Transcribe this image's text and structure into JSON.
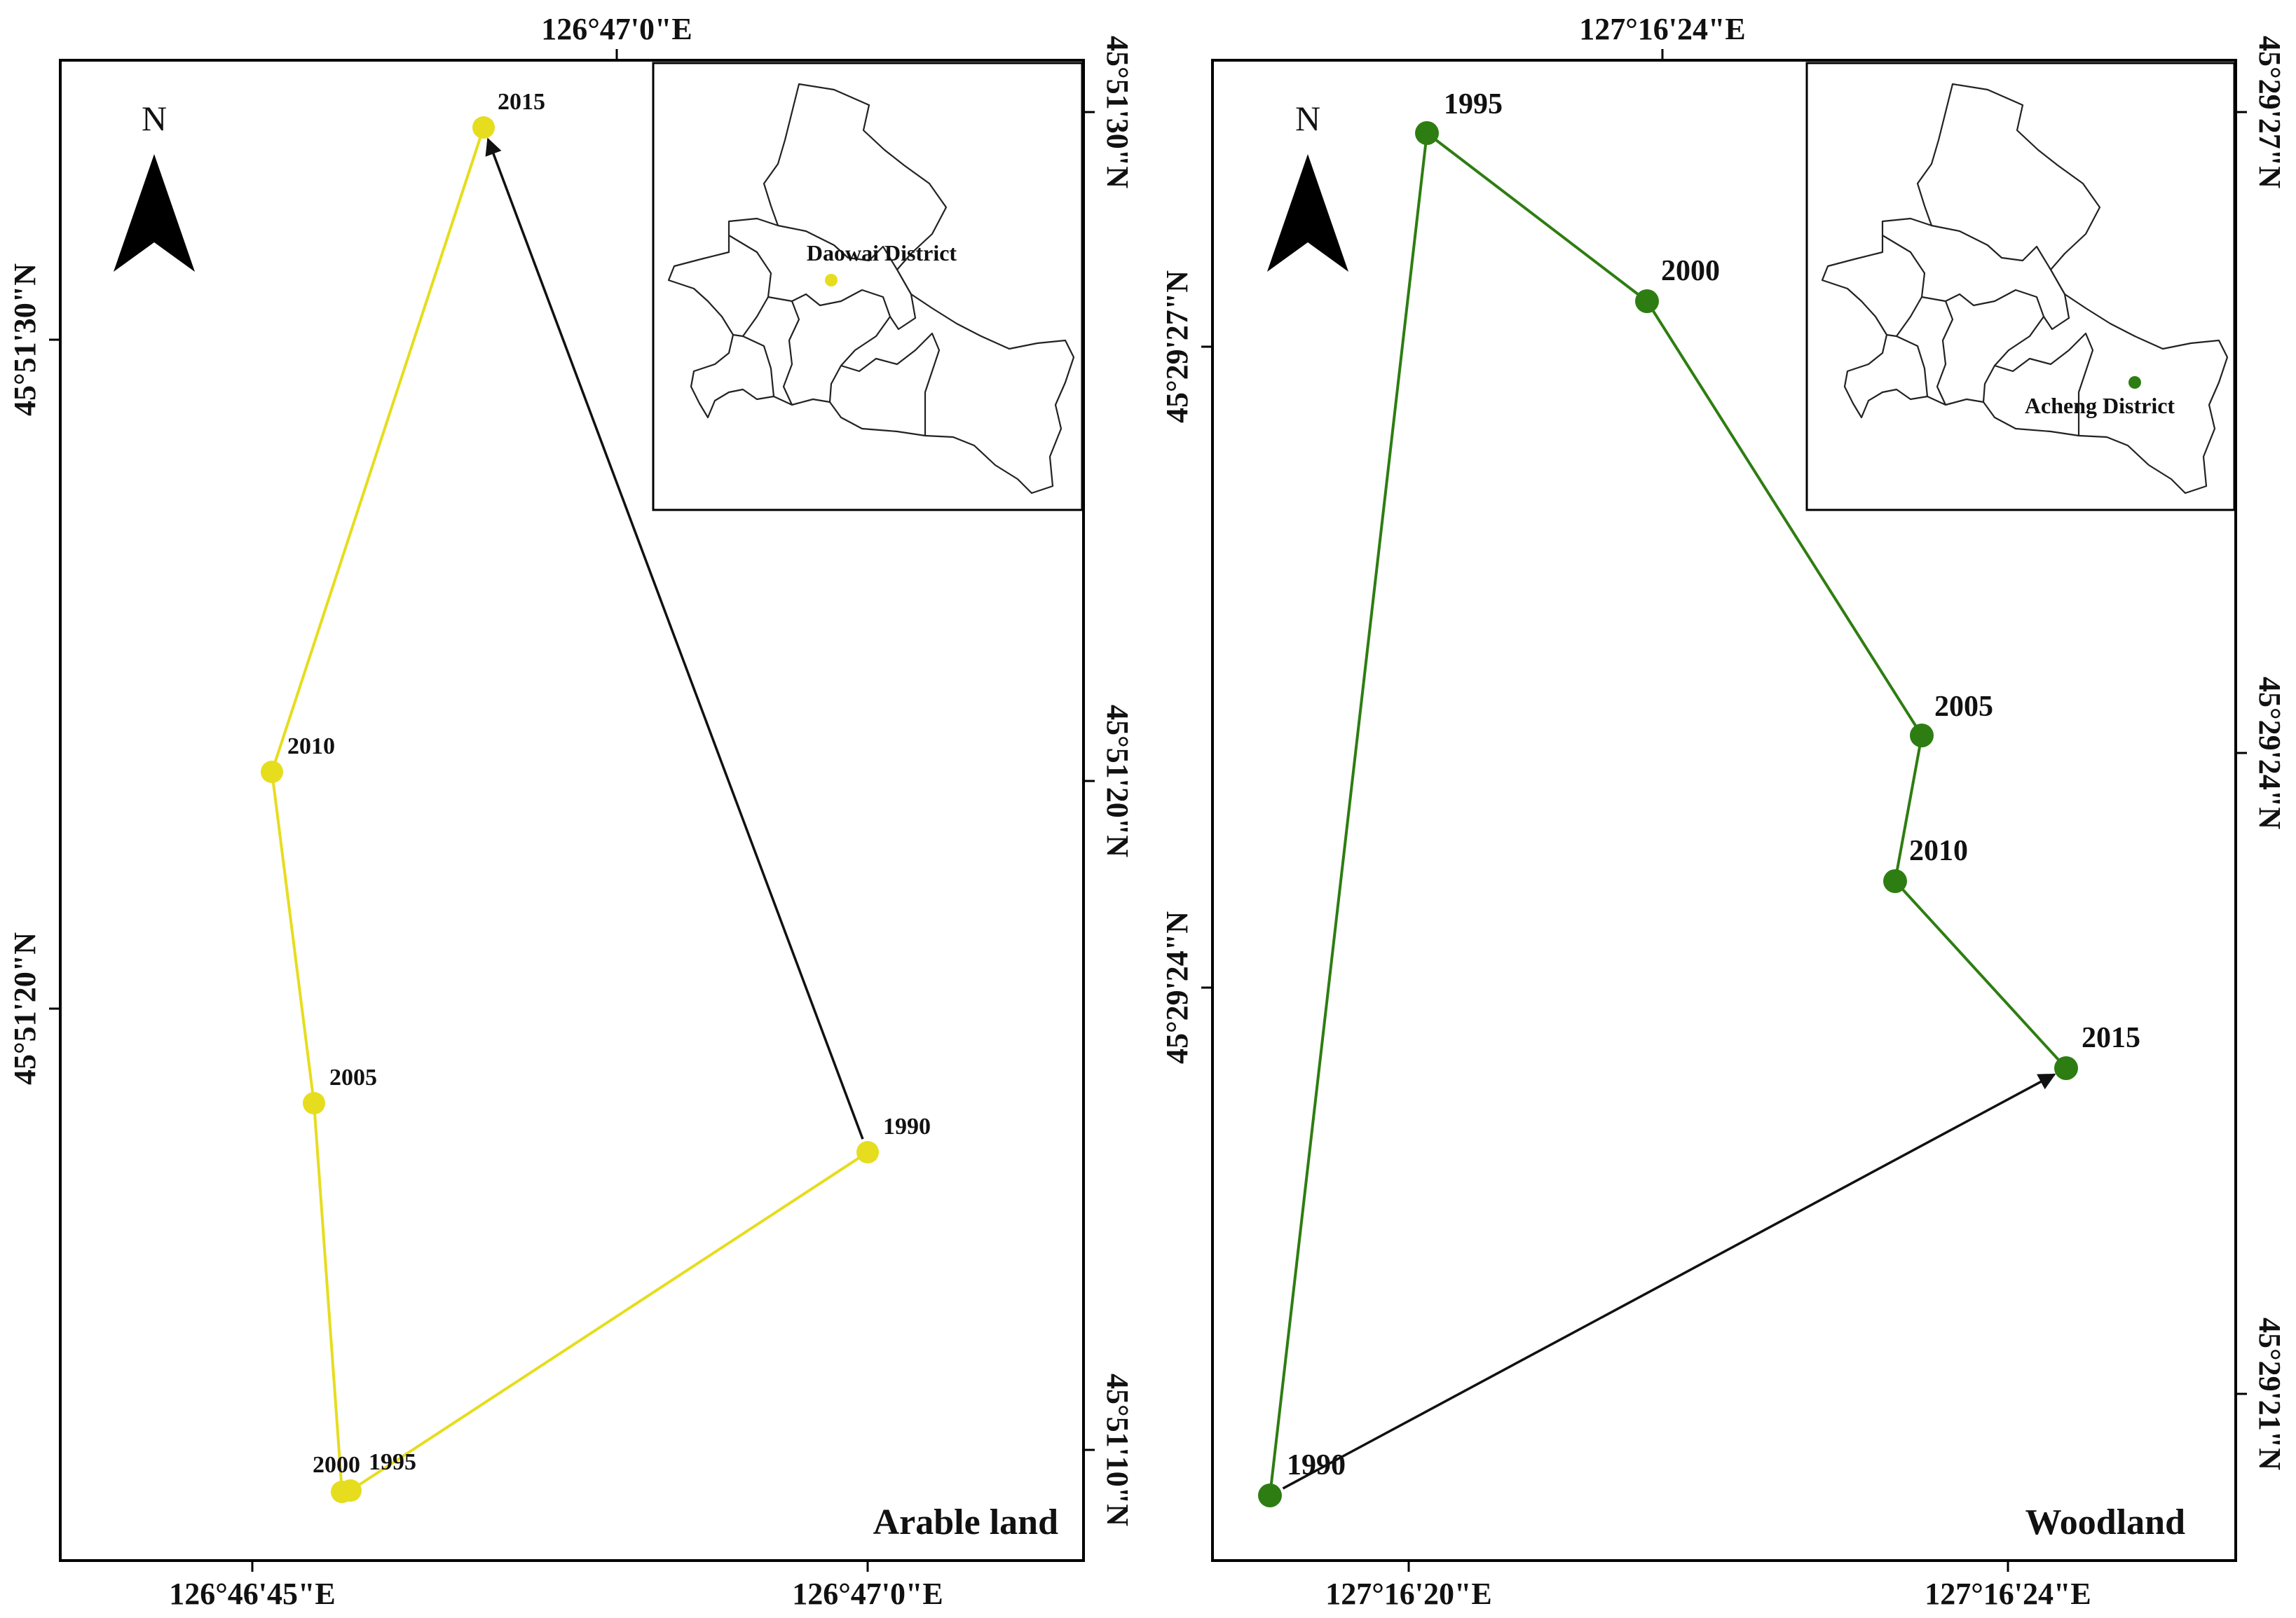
{
  "panels": [
    {
      "id": "arable",
      "title": "Arable land",
      "north_label": "N",
      "top_axis_label": "126°47'0\"E",
      "bottom_axis_labels": [
        "126°46'45\"E",
        "126°47'0\"E"
      ],
      "left_axis_labels": [
        "45°51'30\"N",
        "45°51'20\"N"
      ],
      "right_axis_labels": [
        "45°51'30\"N",
        "45°51'20\"N",
        "45°51'10\"N"
      ],
      "line_color": "#e6dd1e",
      "arrow_color": "#111111",
      "inset": {
        "district_label": "Daowai District",
        "marker_color": "#e6dd1e"
      },
      "points": [
        {
          "year": "1990",
          "label": "1990"
        },
        {
          "year": "1995",
          "label": "1995"
        },
        {
          "year": "2000",
          "label": "2000"
        },
        {
          "year": "2005",
          "label": "2005"
        },
        {
          "year": "2010",
          "label": "2010"
        },
        {
          "year": "2015",
          "label": "2015"
        }
      ]
    },
    {
      "id": "woodland",
      "title": "Woodland",
      "north_label": "N",
      "top_axis_label": "127°16'24\"E",
      "bottom_axis_labels": [
        "127°16'20\"E",
        "127°16'24\"E"
      ],
      "left_axis_labels": [
        "45°29'27\"N",
        "45°29'24\"N"
      ],
      "right_axis_labels": [
        "45°29'27\"N",
        "45°29'24\"N",
        "45°29'21\"N"
      ],
      "line_color": "#2e7d12",
      "arrow_color": "#111111",
      "inset": {
        "district_label": "Acheng District",
        "marker_color": "#2e7d12"
      },
      "points": [
        {
          "year": "1990",
          "label": "1990"
        },
        {
          "year": "1995",
          "label": "1995"
        },
        {
          "year": "2000",
          "label": "2000"
        },
        {
          "year": "2005",
          "label": "2005"
        },
        {
          "year": "2010",
          "label": "2010"
        },
        {
          "year": "2015",
          "label": "2015"
        }
      ]
    }
  ]
}
